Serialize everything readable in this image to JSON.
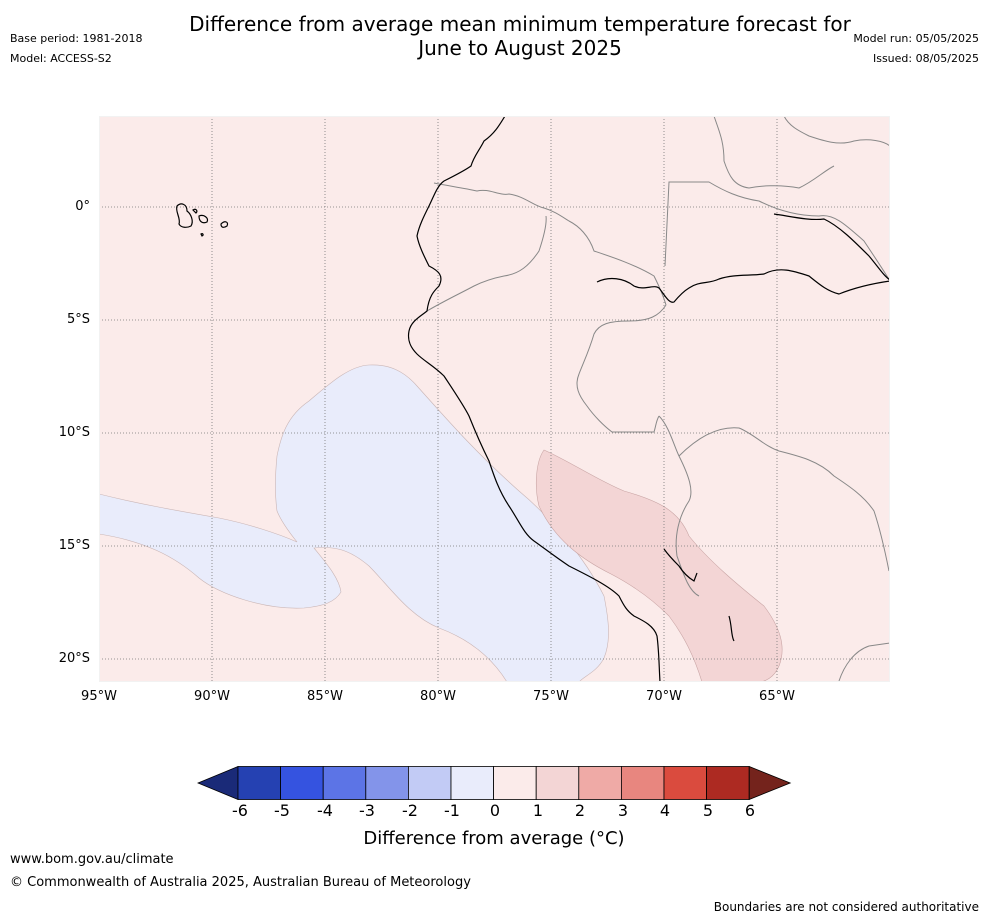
{
  "header": {
    "title_line1": "Difference from average mean minimum temperature forecast for",
    "title_line2": "June to August 2025",
    "base_period": "Base period: 1981-2018",
    "model": "Model: ACCESS-S2",
    "model_run": "Model run: 05/05/2025",
    "issued": "Issued: 08/05/2025"
  },
  "map": {
    "latitude_labels": [
      "0°",
      "5°S",
      "10°S",
      "15°S",
      "20°S"
    ],
    "longitude_labels": [
      "95°W",
      "90°W",
      "85°W",
      "80°W",
      "75°W",
      "70°W",
      "65°W"
    ],
    "extent": {
      "lon": [
        -95,
        -60
      ],
      "lat": [
        -21,
        4
      ]
    },
    "background_anomaly": "0 to 1",
    "features": [
      {
        "name": "cool-anomaly-pacific",
        "category": "-1 to 0",
        "color": "#e9ecfb"
      },
      {
        "name": "warm-anomaly-bolivia-peru",
        "category": "1 to 2",
        "color": "#f3d5d5"
      }
    ]
  },
  "colorbar": {
    "ticks": [
      "-6",
      "-5",
      "-4",
      "-3",
      "-2",
      "-1",
      "0",
      "1",
      "2",
      "3",
      "4",
      "5",
      "6"
    ],
    "colors": [
      "#1a2a78",
      "#2541b2",
      "#3553e0",
      "#5c74e6",
      "#8394ea",
      "#c2cbf5",
      "#e9ecfb",
      "#fbebea",
      "#f3d5d5",
      "#efaaa6",
      "#e8867f",
      "#da4b3e",
      "#ad2a22",
      "#74231c"
    ],
    "label": "Difference from average (°C)"
  },
  "footer": {
    "url": "www.bom.gov.au/climate",
    "copyright": "© Commonwealth of Australia 2025, Australian Bureau of Meteorology",
    "note": "Boundaries are not considered authoritative"
  }
}
